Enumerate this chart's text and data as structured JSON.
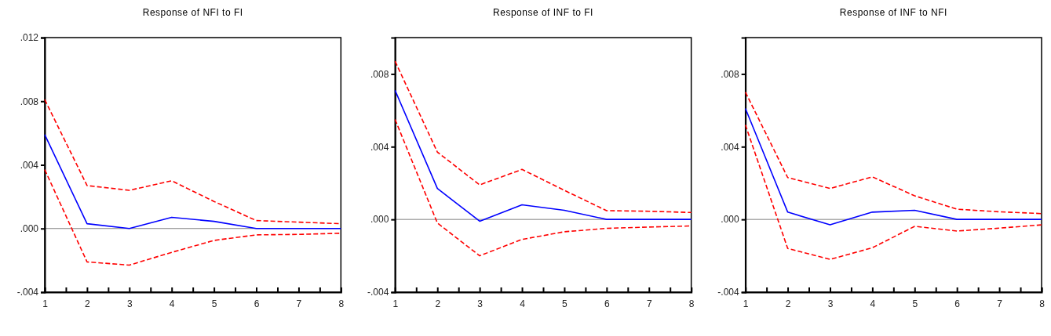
{
  "chart_data": [
    {
      "type": "line",
      "title": "Response of NFI to FI",
      "x": [
        1,
        2,
        3,
        4,
        5,
        6,
        7,
        8
      ],
      "xlim": [
        1,
        8
      ],
      "xticks": [
        1,
        {
          "value": 1.5,
          "label": null
        },
        2,
        {
          "value": 2.5,
          "label": null
        },
        3,
        {
          "value": 3.5,
          "label": null
        },
        4,
        {
          "value": 4.5,
          "label": null
        },
        5,
        {
          "value": 5.5,
          "label": null
        },
        6,
        {
          "value": 6.5,
          "label": null
        },
        7,
        {
          "value": 7.5,
          "label": null
        },
        8
      ],
      "ylim": [
        -0.004,
        0.012
      ],
      "yticks": [
        {
          "value": -0.004,
          "label": "-.004"
        },
        {
          "value": 0,
          "label": ".000"
        },
        {
          "value": 0.004,
          "label": ".004"
        },
        {
          "value": 0.008,
          "label": ".008"
        },
        {
          "value": 0.012,
          "label": ".012"
        }
      ],
      "grid": false,
      "marker": "none",
      "ref_lines": [
        {
          "axis": "y",
          "value": 0,
          "color": "#808080"
        }
      ],
      "series": [
        {
          "color": "#ff0000",
          "line_style": "dashed",
          "values": [
            0.0081,
            0.0027,
            0.0024,
            0.003,
            0.0017,
            0.0005,
            0.0004,
            0.0003
          ]
        },
        {
          "color": "#0000ff",
          "line_style": "solid",
          "values": [
            0.0059,
            0.0003,
            0.0,
            0.0007,
            0.00045,
            0.0,
            0.0,
            0.0
          ]
        },
        {
          "color": "#ff0000",
          "line_style": "dashed",
          "values": [
            0.0037,
            -0.0021,
            -0.0023,
            -0.0015,
            -0.00075,
            -0.0004,
            -0.00037,
            -0.0003
          ]
        }
      ]
    },
    {
      "type": "line",
      "title": "Response of INF to FI",
      "x": [
        1,
        2,
        3,
        4,
        5,
        6,
        7,
        8
      ],
      "xlim": [
        1,
        8
      ],
      "xticks": [
        1,
        {
          "value": 1.5,
          "label": null
        },
        2,
        {
          "value": 2.5,
          "label": null
        },
        3,
        {
          "value": 3.5,
          "label": null
        },
        4,
        {
          "value": 4.5,
          "label": null
        },
        5,
        {
          "value": 5.5,
          "label": null
        },
        6,
        {
          "value": 6.5,
          "label": null
        },
        7,
        {
          "value": 7.5,
          "label": null
        },
        8
      ],
      "ylim": [
        -0.004,
        0.01
      ],
      "yticks": [
        {
          "value": -0.004,
          "label": "-.004"
        },
        {
          "value": 0,
          "label": ".000"
        },
        {
          "value": 0.004,
          "label": ".004"
        },
        {
          "value": 0.008,
          "label": ".008"
        }
      ],
      "grid": false,
      "marker": "none",
      "ref_lines": [
        {
          "axis": "y",
          "value": 0,
          "color": "#808080"
        }
      ],
      "series": [
        {
          "color": "#ff0000",
          "line_style": "dashed",
          "values": [
            0.0087,
            0.0037,
            0.0019,
            0.00275,
            0.0016,
            0.00048,
            0.00045,
            0.00038
          ]
        },
        {
          "color": "#0000ff",
          "line_style": "solid",
          "values": [
            0.0071,
            0.0017,
            -0.0001,
            0.0008,
            0.0005,
            0.0,
            0.0,
            0.0
          ]
        },
        {
          "color": "#ff0000",
          "line_style": "dashed",
          "values": [
            0.0055,
            -0.0002,
            -0.002,
            -0.0011,
            -0.00068,
            -0.00049,
            -0.00042,
            -0.00036
          ]
        }
      ]
    },
    {
      "type": "line",
      "title": "Response of INF to NFI",
      "x": [
        1,
        2,
        3,
        4,
        5,
        6,
        7,
        8
      ],
      "xlim": [
        1,
        8
      ],
      "xticks": [
        1,
        {
          "value": 1.5,
          "label": null
        },
        2,
        {
          "value": 2.5,
          "label": null
        },
        3,
        {
          "value": 3.5,
          "label": null
        },
        4,
        {
          "value": 4.5,
          "label": null
        },
        5,
        {
          "value": 5.5,
          "label": null
        },
        6,
        {
          "value": 6.5,
          "label": null
        },
        7,
        {
          "value": 7.5,
          "label": null
        },
        8
      ],
      "ylim": [
        -0.004,
        0.01
      ],
      "yticks": [
        {
          "value": -0.004,
          "label": "-.004"
        },
        {
          "value": 0,
          "label": ".000"
        },
        {
          "value": 0.004,
          "label": ".004"
        },
        {
          "value": 0.008,
          "label": ".008"
        }
      ],
      "grid": false,
      "marker": "none",
      "ref_lines": [
        {
          "axis": "y",
          "value": 0,
          "color": "#808080"
        }
      ],
      "series": [
        {
          "color": "#ff0000",
          "line_style": "dashed",
          "values": [
            0.007,
            0.0023,
            0.0017,
            0.00234,
            0.0013,
            0.00056,
            0.00042,
            0.00032
          ]
        },
        {
          "color": "#0000ff",
          "line_style": "solid",
          "values": [
            0.0061,
            0.0004,
            -0.0003,
            0.0004,
            0.0005,
            0.0,
            0.0,
            0.0
          ]
        },
        {
          "color": "#ff0000",
          "line_style": "dashed",
          "values": [
            0.0052,
            -0.0016,
            -0.0022,
            -0.00156,
            -0.00038,
            -0.00064,
            -0.00048,
            -0.0003
          ]
        }
      ]
    }
  ]
}
